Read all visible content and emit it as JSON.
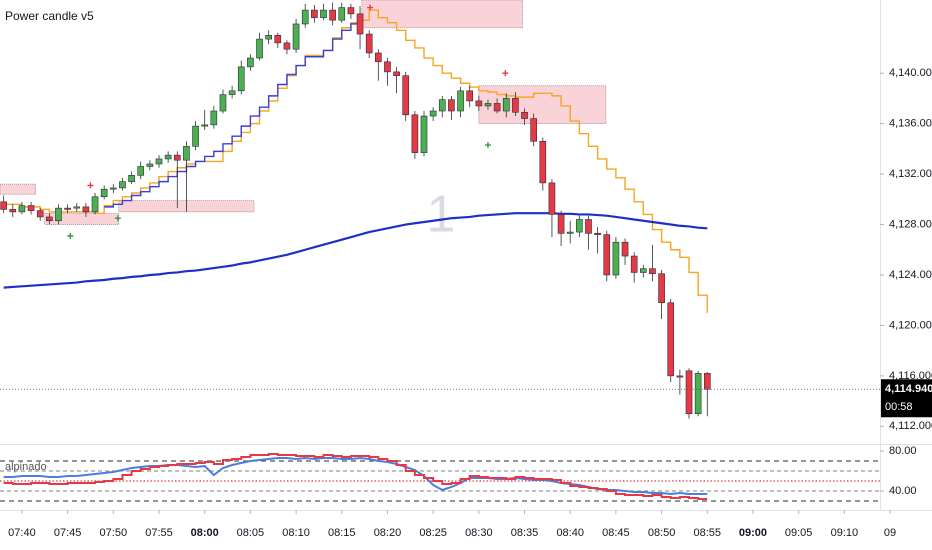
{
  "chart_data": {
    "type": "candlestick",
    "title": "Power candle v5",
    "watermark": "1",
    "xlim": [
      457.6,
      553.9
    ],
    "ylim": [
      4110.6,
      4145.8
    ],
    "xticks": [
      {
        "value": 460,
        "label": "07:40"
      },
      {
        "value": 465,
        "label": "07:45"
      },
      {
        "value": 470,
        "label": "07:50"
      },
      {
        "value": 475,
        "label": "07:55"
      },
      {
        "value": 480,
        "label": "08:00",
        "bold": true
      },
      {
        "value": 485,
        "label": "08:05"
      },
      {
        "value": 490,
        "label": "08:10"
      },
      {
        "value": 495,
        "label": "08:15"
      },
      {
        "value": 500,
        "label": "08:20"
      },
      {
        "value": 505,
        "label": "08:25"
      },
      {
        "value": 510,
        "label": "08:30"
      },
      {
        "value": 515,
        "label": "08:35"
      },
      {
        "value": 520,
        "label": "08:40"
      },
      {
        "value": 525,
        "label": "08:45"
      },
      {
        "value": 530,
        "label": "08:50"
      },
      {
        "value": 535,
        "label": "08:55"
      },
      {
        "value": 540,
        "label": "09:00",
        "bold": true
      },
      {
        "value": 545,
        "label": "09:05"
      },
      {
        "value": 550,
        "label": "09:10"
      },
      {
        "value": 555,
        "label": "09"
      }
    ],
    "yticks": [
      {
        "value": 4112,
        "label": "4,112.000"
      },
      {
        "value": 4116,
        "label": "4,116.000"
      },
      {
        "value": 4120,
        "label": "4,120.000"
      },
      {
        "value": 4124,
        "label": "4,124.000"
      },
      {
        "value": 4128,
        "label": "4,128.000"
      },
      {
        "value": 4132,
        "label": "4,132.000"
      },
      {
        "value": 4136,
        "label": "4,136.000"
      },
      {
        "value": 4140,
        "label": "4,140.000"
      }
    ],
    "up_color": "#4caf50",
    "down_color": "#e53945",
    "x": [
      458,
      459,
      460,
      461,
      462,
      463,
      464,
      465,
      466,
      467,
      468,
      469,
      470,
      471,
      472,
      473,
      474,
      475,
      476,
      477,
      478,
      479,
      480,
      481,
      482,
      483,
      484,
      485,
      486,
      487,
      488,
      489,
      490,
      491,
      492,
      493,
      494,
      495,
      496,
      497,
      498,
      499,
      500,
      501,
      502,
      503,
      504,
      505,
      506,
      507,
      508,
      509,
      510,
      511,
      512,
      513,
      514,
      515,
      516,
      517,
      518,
      519,
      520,
      521,
      522,
      523,
      524,
      525,
      526,
      527,
      528,
      529,
      530,
      531,
      532,
      533,
      534,
      535
    ],
    "open": [
      4129.8,
      4129.2,
      4129.0,
      4129.5,
      4129.1,
      4128.6,
      4128.3,
      4129.3,
      4129.3,
      4129.4,
      4129.0,
      4130.2,
      4130.8,
      4130.9,
      4131.4,
      4131.9,
      4132.6,
      4132.8,
      4133.2,
      4133.5,
      4133.1,
      4134.2,
      4135.8,
      4135.9,
      4137.0,
      4138.3,
      4138.6,
      4140.5,
      4141.2,
      4142.7,
      4143.0,
      4142.4,
      4141.9,
      4143.9,
      4145.0,
      4144.4,
      4145.0,
      4144.2,
      4145.2,
      4144.7,
      4143.1,
      4141.6,
      4140.9,
      4140.1,
      4139.8,
      4136.7,
      4133.7,
      4136.6,
      4137.0,
      4137.9,
      4137.0,
      4138.6,
      4137.8,
      4137.4,
      4137.6,
      4137.0,
      4138.0,
      4136.9,
      4136.4,
      4134.6,
      4131.3,
      4128.8,
      4127.3,
      4127.4,
      4128.4,
      4127.3,
      4127.2,
      4124.0,
      4126.6,
      4125.5,
      4124.2,
      4124.5,
      4124.1,
      4121.8,
      4116.0,
      4116.4,
      4113.0,
      4116.2
    ],
    "high": [
      4130.3,
      4129.6,
      4129.8,
      4129.8,
      4129.3,
      4128.9,
      4129.6,
      4129.6,
      4129.7,
      4129.7,
      4130.5,
      4131.1,
      4131.2,
      4131.7,
      4132.2,
      4133.0,
      4133.1,
      4133.5,
      4133.8,
      4133.8,
      4134.6,
      4136.2,
      4137.1,
      4137.4,
      4138.7,
      4139.0,
      4141.0,
      4141.5,
      4143.2,
      4143.4,
      4143.2,
      4142.6,
      4144.3,
      4145.5,
      4145.4,
      4145.5,
      4145.6,
      4145.6,
      4145.5,
      4145.3,
      4143.4,
      4141.9,
      4141.2,
      4140.5,
      4140.1,
      4137.0,
      4137.0,
      4137.3,
      4138.2,
      4138.2,
      4138.9,
      4139.0,
      4138.2,
      4137.9,
      4138.0,
      4138.4,
      4138.5,
      4137.2,
      4136.8,
      4134.9,
      4131.6,
      4129.1,
      4128.3,
      4128.7,
      4128.7,
      4127.8,
      4127.5,
      4127.0,
      4126.9,
      4125.8,
      4124.8,
      4126.4,
      4124.4,
      4122.1,
      4116.5,
      4116.6,
      4116.4,
      4116.3
    ],
    "low": [
      4128.9,
      4128.6,
      4128.8,
      4128.8,
      4128.3,
      4128.0,
      4128.0,
      4128.9,
      4129.0,
      4128.6,
      4128.8,
      4130.0,
      4130.5,
      4130.7,
      4131.2,
      4131.6,
      4132.3,
      4132.5,
      4132.9,
      4129.3,
      4129.0,
      4133.9,
      4135.5,
      4135.6,
      4136.8,
      4138.0,
      4138.3,
      4140.2,
      4141.0,
      4142.3,
      4142.0,
      4141.5,
      4141.6,
      4143.6,
      4144.0,
      4144.2,
      4143.8,
      4144.0,
      4144.3,
      4141.9,
      4141.2,
      4139.4,
      4139.0,
      4138.4,
      4136.2,
      4133.2,
      4133.4,
      4136.2,
      4136.5,
      4136.3,
      4136.5,
      4137.3,
      4137.0,
      4137.1,
      4136.8,
      4136.5,
      4136.6,
      4135.9,
      4134.2,
      4130.7,
      4127.0,
      4126.3,
      4126.5,
      4127.0,
      4126.0,
      4125.7,
      4123.5,
      4123.7,
      4124.8,
      4123.4,
      4123.8,
      4123.5,
      4120.5,
      4115.5,
      4114.5,
      4112.6,
      4112.8,
      4112.8
    ],
    "close": [
      4129.2,
      4129.0,
      4129.5,
      4129.1,
      4128.6,
      4128.3,
      4129.3,
      4129.2,
      4129.4,
      4129.0,
      4130.2,
      4130.8,
      4130.9,
      4131.4,
      4131.9,
      4132.6,
      4132.8,
      4133.2,
      4133.5,
      4133.1,
      4134.2,
      4135.8,
      4135.9,
      4137.0,
      4138.3,
      4138.6,
      4140.5,
      4141.2,
      4142.7,
      4143.0,
      4142.4,
      4141.9,
      4143.9,
      4145.0,
      4144.4,
      4145.0,
      4144.2,
      4145.2,
      4144.7,
      4143.1,
      4141.6,
      4140.9,
      4140.1,
      4139.8,
      4136.7,
      4133.7,
      4136.6,
      4137.0,
      4137.9,
      4137.0,
      4138.6,
      4137.8,
      4137.4,
      4137.6,
      4137.0,
      4138.0,
      4136.9,
      4136.4,
      4134.6,
      4131.3,
      4128.8,
      4127.3,
      4127.4,
      4128.4,
      4127.3,
      4127.2,
      4124.0,
      4126.6,
      4125.5,
      4124.2,
      4124.5,
      4124.1,
      4121.8,
      4116.0,
      4115.9,
      4113.0,
      4116.2,
      4114.94
    ],
    "lines": [
      {
        "color": "#f5a623",
        "step": true,
        "width": 1.4,
        "values": [
          4129.6,
          4129.6,
          4129.4,
          4129.4,
          4129.2,
          4129.0,
          4129.0,
          4129.0,
          4129.0,
          4129.0,
          4128.9,
          4129.5,
          4129.9,
          4130.2,
          4130.5,
          4130.9,
          4131.3,
          4131.8,
          4132.2,
          4132.5,
          4132.8,
          4133.0,
          4133.0,
          4133.0,
          4133.8,
          4134.6,
          4135.3,
          4136.0,
          4137.0,
          4137.8,
          4138.8,
          4139.8,
          4140.6,
          4141.4,
          4141.4,
          4141.8,
          4142.8,
          4143.6,
          4144.0,
          4144.2,
          4145.0,
          4144.4,
          4144.0,
          4143.4,
          4142.6,
          4142.0,
          4141.2,
          4140.6,
          4140.0,
          4139.6,
          4139.2,
          4138.9,
          4138.6,
          4138.5,
          4138.3,
          4138.2,
          4138.1,
          4138.1,
          4138.4,
          4138.4,
          4138.2,
          4137.4,
          4136.2,
          4135.2,
          4134.2,
          4133.2,
          4132.4,
          4131.7,
          4130.8,
          4129.8,
          4128.8,
          4127.6,
          4126.6,
          4126.0,
          4125.4,
          4124.2,
          4122.4,
          4121.0
        ]
      },
      {
        "color": "#3a3fd6",
        "step": true,
        "width": 1.4,
        "values": [
          null,
          null,
          null,
          null,
          null,
          null,
          null,
          null,
          null,
          null,
          null,
          4129.4,
          4129.6,
          4129.9,
          4130.3,
          4130.6,
          4131.0,
          4131.4,
          4131.8,
          4132.2,
          4132.6,
          4133.0,
          4133.4,
          4133.8,
          4134.4,
          4135.0,
          4135.8,
          4136.6,
          4137.3,
          4138.2,
          4139.1,
          4139.9,
          4140.6,
          4141.3,
          4141.3,
          4141.8,
          4142.7,
          4143.4,
          4143.9,
          4144.2,
          null,
          null,
          null,
          null,
          null,
          null,
          null,
          null,
          null,
          null,
          null,
          null,
          null,
          null,
          null,
          null,
          null,
          null,
          null,
          null,
          null,
          null,
          null,
          null,
          null,
          null,
          null,
          null,
          null,
          null,
          null,
          null,
          null,
          null,
          null,
          null,
          null,
          null
        ]
      },
      {
        "color": "#1e2fc8",
        "step": false,
        "width": 2.2,
        "values": [
          4123.0,
          4123.05,
          4123.1,
          4123.15,
          4123.2,
          4123.25,
          4123.3,
          4123.35,
          4123.4,
          4123.5,
          4123.55,
          4123.6,
          4123.7,
          4123.75,
          4123.85,
          4123.9,
          4124.0,
          4124.05,
          4124.15,
          4124.2,
          4124.3,
          4124.35,
          4124.45,
          4124.55,
          4124.65,
          4124.75,
          4124.9,
          4125.0,
          4125.15,
          4125.3,
          4125.45,
          4125.6,
          4125.8,
          4126.0,
          4126.2,
          4126.4,
          4126.6,
          4126.8,
          4127.0,
          4127.2,
          4127.4,
          4127.55,
          4127.7,
          4127.85,
          4128.0,
          4128.1,
          4128.2,
          4128.3,
          4128.4,
          4128.5,
          4128.55,
          4128.6,
          4128.7,
          4128.75,
          4128.8,
          4128.85,
          4128.9,
          4128.9,
          4128.9,
          4128.9,
          4128.9,
          4128.85,
          4128.85,
          4128.8,
          4128.8,
          4128.75,
          4128.7,
          4128.6,
          4128.5,
          4128.4,
          4128.3,
          4128.2,
          4128.1,
          4128.0,
          4127.9,
          4127.85,
          4127.75,
          4127.7
        ]
      }
    ],
    "zones": [
      {
        "x0": 457.6,
        "x1": 461.5,
        "y0": 4130.4,
        "y1": 4131.2
      },
      {
        "x0": 462.5,
        "x1": 470.6,
        "y0": 4128.0,
        "y1": 4128.9
      },
      {
        "x0": 470.6,
        "x1": 485.4,
        "y0": 4129.0,
        "y1": 4129.9
      },
      {
        "x0": 497.2,
        "x1": 514.8,
        "y0": 4143.6,
        "y1": 4145.8
      },
      {
        "x0": 510.0,
        "x1": 523.9,
        "y0": 4136.0,
        "y1": 4139.0
      }
    ],
    "markers": [
      {
        "x": 465.3,
        "y": 4127.1,
        "color": "#2e9e4a"
      },
      {
        "x": 470.5,
        "y": 4128.5,
        "color": "#2e9e4a"
      },
      {
        "x": 467.5,
        "y": 4131.1,
        "color": "#e53945"
      },
      {
        "x": 498.1,
        "y": 4145.2,
        "color": "#e53945"
      },
      {
        "x": 512.9,
        "y": 4140.0,
        "color": "#e53945"
      },
      {
        "x": 511.0,
        "y": 4134.3,
        "color": "#2e9e4a"
      }
    ],
    "last_price": {
      "value": 4114.94,
      "label": "4,114.940"
    },
    "countdown": "00:58",
    "oscillator": {
      "name": "alpinado",
      "ylim": [
        25,
        85
      ],
      "yticks": [
        {
          "value": 80,
          "label": "80.00"
        },
        {
          "value": 40,
          "label": "40.00"
        }
      ],
      "levels": [
        {
          "value": 70,
          "color": "#555555",
          "dash": "5,4"
        },
        {
          "value": 60,
          "color": "#9a9a9a",
          "dash": "4,3"
        },
        {
          "value": 50,
          "color": "#e53945",
          "dash": "1.5,2"
        },
        {
          "value": 40,
          "color": "#9a9a9a",
          "dash": "4,3"
        },
        {
          "value": 30,
          "color": "#555555",
          "dash": "5,4"
        }
      ],
      "series": [
        {
          "color": "#4a7fe0",
          "values": [
            54,
            54,
            55,
            55,
            55,
            54,
            54,
            55,
            55,
            56,
            57,
            58,
            59,
            61,
            63,
            64,
            65,
            65,
            66,
            66,
            65,
            64,
            65,
            56,
            63,
            66,
            68,
            70,
            71,
            72,
            73,
            73,
            72,
            73,
            72,
            73,
            73,
            72,
            72,
            73,
            72,
            70,
            69,
            67,
            64,
            61,
            55,
            46,
            41,
            44,
            48,
            53,
            53,
            53,
            52,
            52,
            53,
            52,
            51,
            51,
            50,
            48,
            47,
            46,
            44,
            42,
            41,
            41,
            40,
            39,
            39,
            38,
            38,
            37,
            38,
            37,
            37,
            37
          ]
        },
        {
          "color": "#e53945",
          "values": [
            48,
            47,
            47,
            48,
            48,
            47,
            47,
            48,
            48,
            48,
            49,
            50,
            52,
            56,
            60,
            62,
            64,
            65,
            66,
            67,
            67,
            68,
            69,
            67,
            71,
            72,
            74,
            76,
            76,
            77,
            76,
            76,
            75,
            75,
            74,
            76,
            75,
            74,
            75,
            75,
            74,
            72,
            70,
            66,
            60,
            56,
            53,
            50,
            47,
            48,
            52,
            55,
            54,
            53,
            53,
            52,
            54,
            53,
            52,
            52,
            51,
            48,
            45,
            44,
            43,
            42,
            40,
            37,
            36,
            36,
            35,
            36,
            34,
            33,
            34,
            33,
            32,
            32
          ]
        }
      ]
    }
  }
}
